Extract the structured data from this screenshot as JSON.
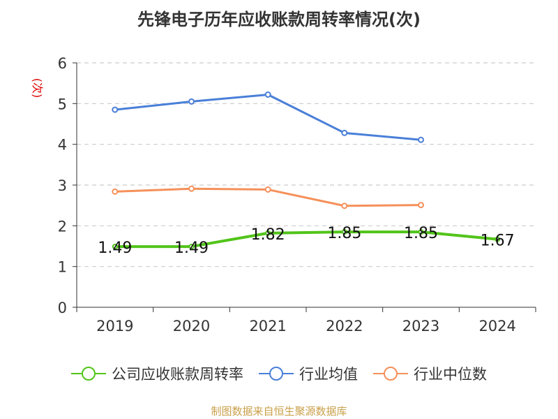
{
  "title": "先锋电子历年应收账款周转率情况(次)",
  "source": "制图数据来自恒生聚源数据库",
  "chart_data": {
    "type": "line",
    "ylabel": "(次)",
    "categories": [
      "2019",
      "2020",
      "2021",
      "2022",
      "2023",
      "2024"
    ],
    "ylim": [
      0,
      6
    ],
    "yticks": [
      0,
      1,
      2,
      3,
      4,
      5,
      6
    ],
    "grid": true,
    "legend_position": "bottom",
    "series": [
      {
        "name": "公司应收账款周转率",
        "color": "#52c41a",
        "values": [
          1.49,
          1.49,
          1.82,
          1.85,
          1.85,
          1.67
        ],
        "labels": [
          "1.49",
          "1.49",
          "1.82",
          "1.85",
          "1.85",
          "1.67"
        ]
      },
      {
        "name": "行业均值",
        "color": "#4a7fd8",
        "values": [
          4.85,
          5.05,
          5.22,
          4.28,
          4.11,
          null
        ]
      },
      {
        "name": "行业中位数",
        "color": "#f5905a",
        "values": [
          2.84,
          2.91,
          2.89,
          2.49,
          2.51,
          null
        ]
      }
    ]
  }
}
